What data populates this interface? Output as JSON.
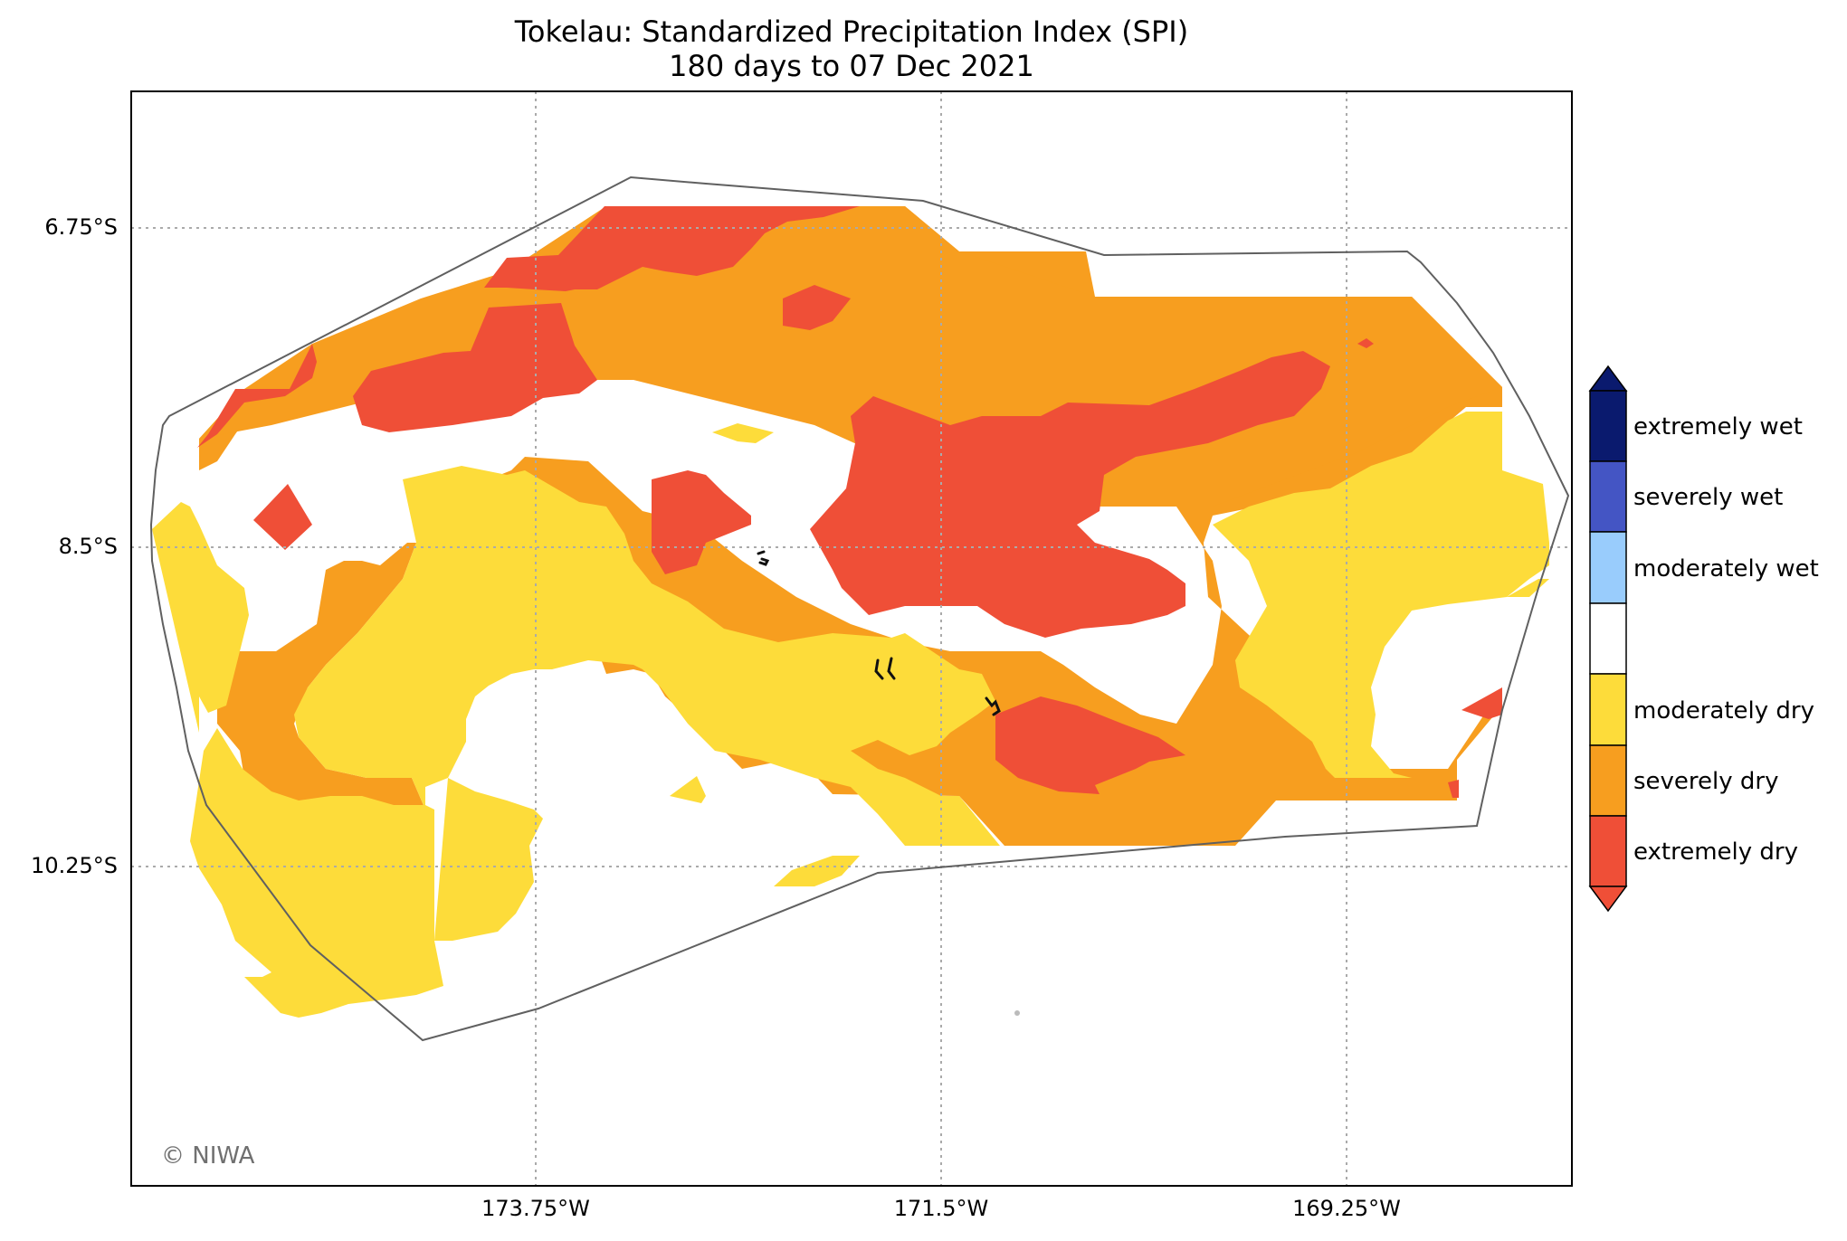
{
  "title": {
    "line1": "Tokelau: Standardized Precipitation Index (SPI)",
    "line2": "180 days to 07 Dec 2021"
  },
  "axes": {
    "latitude_labels": [
      "6.75°S",
      "8.5°S",
      "10.25°S"
    ],
    "longitude_labels": [
      "173.75°W",
      "171.5°W",
      "169.25°W"
    ],
    "gridlines": true
  },
  "legend": {
    "placement": "right",
    "categories": [
      {
        "label": "extremely wet",
        "color": "#0a1a6e"
      },
      {
        "label": "severely wet",
        "color": "#4455c4"
      },
      {
        "label": "moderately wet",
        "color": "#99ccfc"
      },
      {
        "label": "",
        "color": "#ffffff"
      },
      {
        "label": "moderately dry",
        "color": "#fddc3a"
      },
      {
        "label": "severely dry",
        "color": "#f79e1f"
      },
      {
        "label": "extremely dry",
        "color": "#ef4f37"
      }
    ]
  },
  "colors": {
    "extremely_dry": "#ef4f37",
    "severely_dry": "#f79e1f",
    "moderately_dry": "#fddc3a",
    "boundary": "#606060",
    "gridline": "#aaaaaa"
  },
  "credit": "© NIWA"
}
